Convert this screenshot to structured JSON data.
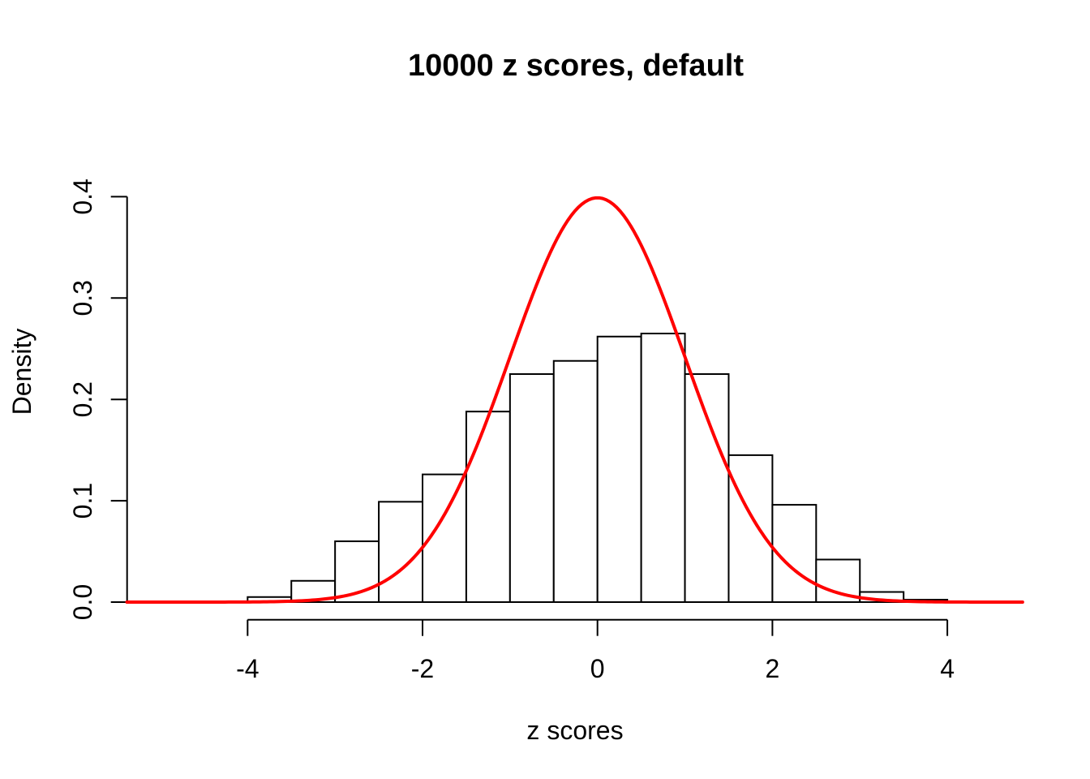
{
  "chart_data": {
    "type": "bar",
    "subtype": "histogram-with-density-curve",
    "title": "10000 z scores, default",
    "xlabel": "z scores",
    "ylabel": "Density",
    "grid": false,
    "legend": null,
    "background_color": "#ffffff",
    "x_ticks": [
      {
        "value": -4,
        "label": "-4"
      },
      {
        "value": -2,
        "label": "-2"
      },
      {
        "value": 0,
        "label": "0"
      },
      {
        "value": 2,
        "label": "2"
      },
      {
        "value": 4,
        "label": "4"
      }
    ],
    "y_ticks": [
      {
        "value": 0.0,
        "label": "0.0"
      },
      {
        "value": 0.1,
        "label": "0.1"
      },
      {
        "value": 0.2,
        "label": "0.2"
      },
      {
        "value": 0.3,
        "label": "0.3"
      },
      {
        "value": 0.4,
        "label": "0.4"
      }
    ],
    "xlim": [
      -5.38,
      4.88
    ],
    "ylim": [
      0,
      0.4
    ],
    "bins": [
      {
        "x0": -4.0,
        "x1": -3.5,
        "density": 0.005
      },
      {
        "x0": -3.5,
        "x1": -3.0,
        "density": 0.021
      },
      {
        "x0": -3.0,
        "x1": -2.5,
        "density": 0.06
      },
      {
        "x0": -2.5,
        "x1": -2.0,
        "density": 0.099
      },
      {
        "x0": -2.0,
        "x1": -1.5,
        "density": 0.126
      },
      {
        "x0": -1.5,
        "x1": -1.0,
        "density": 0.188
      },
      {
        "x0": -1.0,
        "x1": -0.5,
        "density": 0.225
      },
      {
        "x0": -0.5,
        "x1": 0.0,
        "density": 0.238
      },
      {
        "x0": 0.0,
        "x1": 0.5,
        "density": 0.262
      },
      {
        "x0": 0.5,
        "x1": 1.0,
        "density": 0.265
      },
      {
        "x0": 1.0,
        "x1": 1.5,
        "density": 0.225
      },
      {
        "x0": 1.5,
        "x1": 2.0,
        "density": 0.145
      },
      {
        "x0": 2.0,
        "x1": 2.5,
        "density": 0.096
      },
      {
        "x0": 2.5,
        "x1": 3.0,
        "density": 0.042
      },
      {
        "x0": 3.0,
        "x1": 3.5,
        "density": 0.01
      },
      {
        "x0": 3.5,
        "x1": 4.0,
        "density": 0.0024
      },
      {
        "x0": 4.0,
        "x1": 4.5,
        "density": 0.0005
      }
    ],
    "curve": {
      "name": "standard-normal-density",
      "mean": 0,
      "sd": 1,
      "peak": 0.4,
      "x_from": -5.38,
      "x_to": 4.88,
      "color": "#ff0000",
      "line_width": 4
    },
    "colors": {
      "bar_fill": "#ffffff",
      "bar_stroke": "#000000",
      "axis": "#000000",
      "text": "#000000"
    }
  }
}
